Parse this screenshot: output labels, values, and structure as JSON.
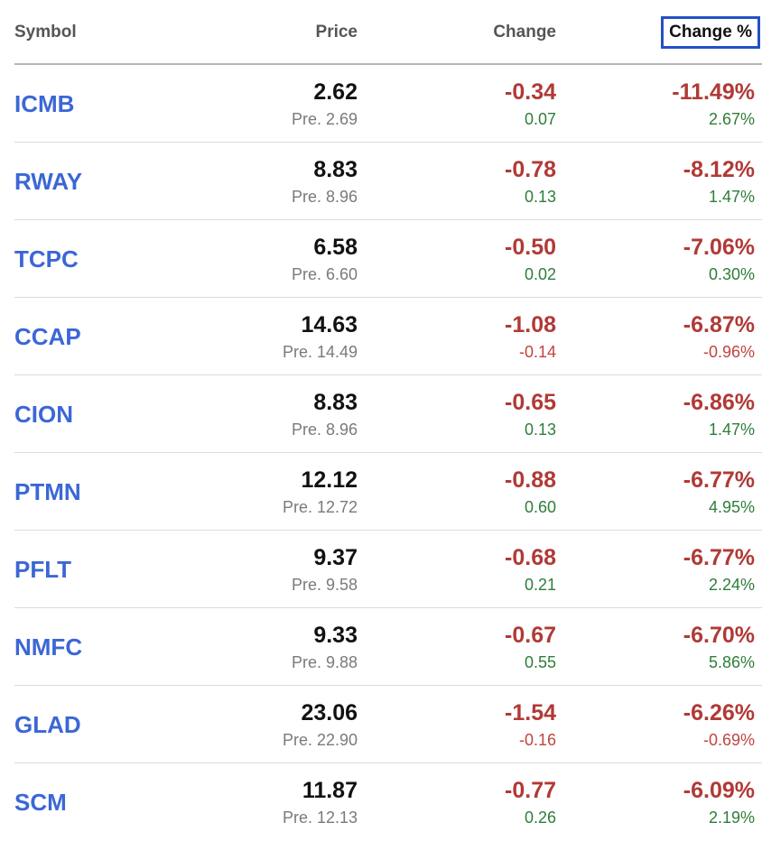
{
  "header": {
    "symbol": "Symbol",
    "price": "Price",
    "change": "Change",
    "change_pct": "Change %"
  },
  "colors": {
    "symbol_link": "#3b67d6",
    "negative": "#b03a36",
    "positive": "#2f7d3a",
    "sort_highlight": "#2450c8"
  },
  "rows": [
    {
      "symbol": "ICMB",
      "price": "2.62",
      "pre": "Pre. 2.69",
      "change": "-0.34",
      "pre_change": "0.07",
      "change_pct": "-11.49%",
      "pre_change_pct": "2.67%"
    },
    {
      "symbol": "RWAY",
      "price": "8.83",
      "pre": "Pre. 8.96",
      "change": "-0.78",
      "pre_change": "0.13",
      "change_pct": "-8.12%",
      "pre_change_pct": "1.47%"
    },
    {
      "symbol": "TCPC",
      "price": "6.58",
      "pre": "Pre. 6.60",
      "change": "-0.50",
      "pre_change": "0.02",
      "change_pct": "-7.06%",
      "pre_change_pct": "0.30%"
    },
    {
      "symbol": "CCAP",
      "price": "14.63",
      "pre": "Pre. 14.49",
      "change": "-1.08",
      "pre_change": "-0.14",
      "change_pct": "-6.87%",
      "pre_change_pct": "-0.96%"
    },
    {
      "symbol": "CION",
      "price": "8.83",
      "pre": "Pre. 8.96",
      "change": "-0.65",
      "pre_change": "0.13",
      "change_pct": "-6.86%",
      "pre_change_pct": "1.47%"
    },
    {
      "symbol": "PTMN",
      "price": "12.12",
      "pre": "Pre. 12.72",
      "change": "-0.88",
      "pre_change": "0.60",
      "change_pct": "-6.77%",
      "pre_change_pct": "4.95%"
    },
    {
      "symbol": "PFLT",
      "price": "9.37",
      "pre": "Pre. 9.58",
      "change": "-0.68",
      "pre_change": "0.21",
      "change_pct": "-6.77%",
      "pre_change_pct": "2.24%"
    },
    {
      "symbol": "NMFC",
      "price": "9.33",
      "pre": "Pre. 9.88",
      "change": "-0.67",
      "pre_change": "0.55",
      "change_pct": "-6.70%",
      "pre_change_pct": "5.86%"
    },
    {
      "symbol": "GLAD",
      "price": "23.06",
      "pre": "Pre. 22.90",
      "change": "-1.54",
      "pre_change": "-0.16",
      "change_pct": "-6.26%",
      "pre_change_pct": "-0.69%"
    },
    {
      "symbol": "SCM",
      "price": "11.87",
      "pre": "Pre. 12.13",
      "change": "-0.77",
      "pre_change": "0.26",
      "change_pct": "-6.09%",
      "pre_change_pct": "2.19%"
    }
  ]
}
